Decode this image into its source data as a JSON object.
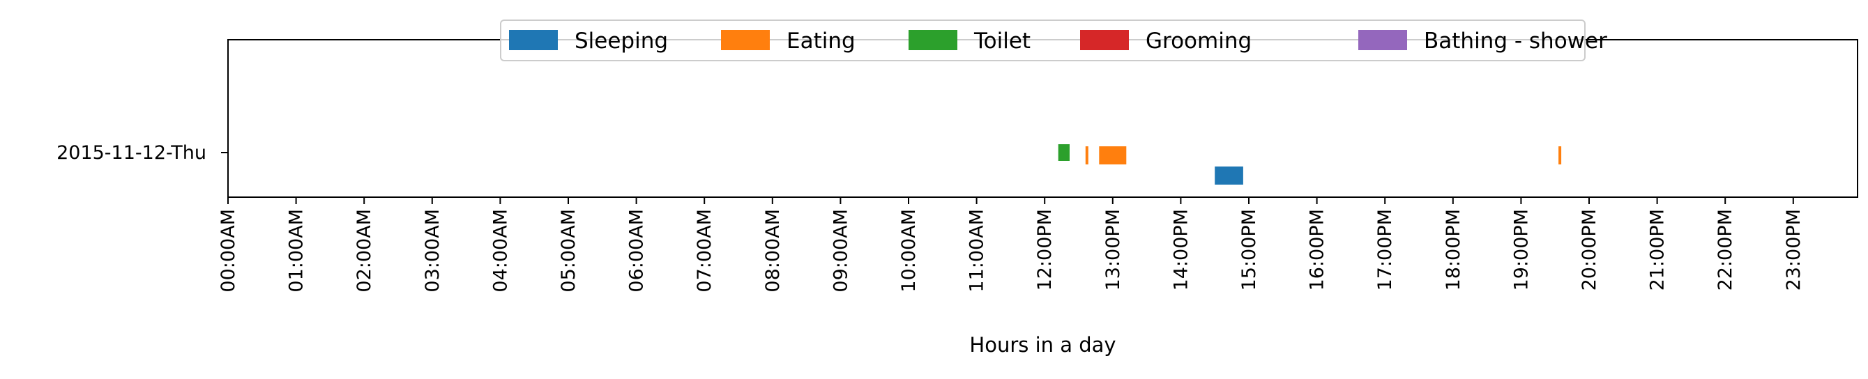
{
  "chart_data": {
    "type": "timeline",
    "xlabel": "Hours in a day",
    "ylabel": "",
    "title": "",
    "xlim": [
      0,
      24
    ],
    "x_unit": "hours",
    "x_ticks": [
      "00:00AM",
      "01:00AM",
      "02:00AM",
      "03:00AM",
      "04:00AM",
      "05:00AM",
      "06:00AM",
      "07:00AM",
      "08:00AM",
      "09:00AM",
      "10:00AM",
      "11:00AM",
      "12:00PM",
      "13:00PM",
      "14:00PM",
      "15:00PM",
      "16:00PM",
      "17:00PM",
      "18:00PM",
      "19:00PM",
      "20:00PM",
      "21:00PM",
      "22:00PM",
      "23:00PM"
    ],
    "days": [
      "2015-11-12-Thu"
    ],
    "grid": false,
    "legend_position": "top-center",
    "series": [
      {
        "name": "Sleeping",
        "color": "#1f77b4",
        "lane": 0,
        "intervals": [
          [
            "14:30",
            "14:55"
          ]
        ]
      },
      {
        "name": "Eating",
        "color": "#ff7f0e",
        "lane": 1,
        "intervals": [
          [
            "12:36",
            "12:38"
          ],
          [
            "12:48",
            "13:12"
          ],
          [
            "19:33",
            "19:35"
          ]
        ]
      },
      {
        "name": "Toilet",
        "color": "#2ca02c",
        "lane": 2,
        "intervals": [
          [
            "12:12",
            "12:22"
          ]
        ]
      },
      {
        "name": "Grooming",
        "color": "#d62728",
        "lane": 3,
        "intervals": []
      },
      {
        "name": "Bathing - shower",
        "color": "#9467bd",
        "lane": 4,
        "intervals": []
      }
    ]
  }
}
